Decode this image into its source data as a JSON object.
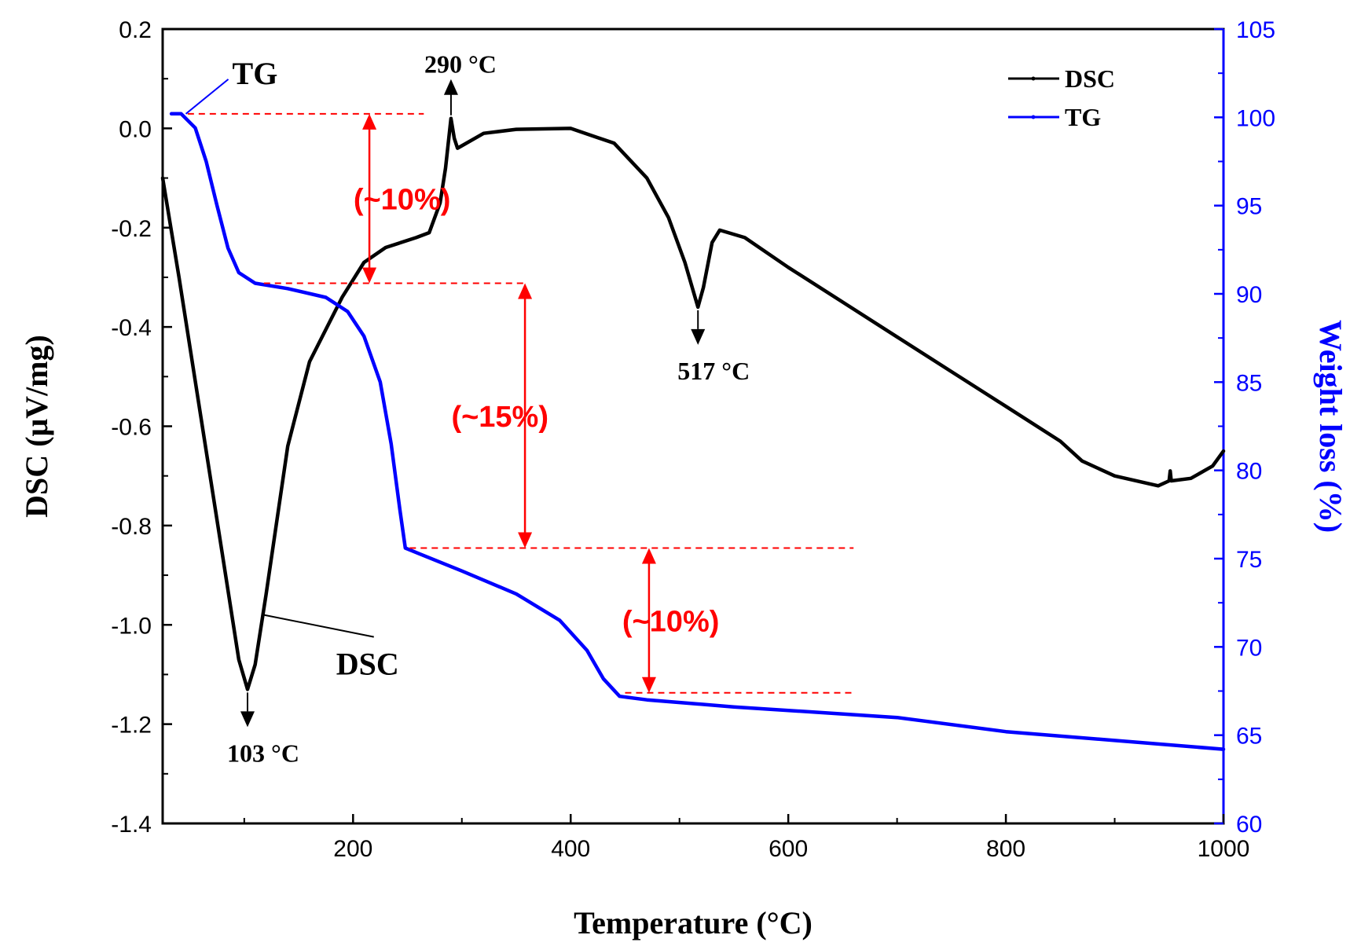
{
  "chart_data": {
    "type": "line",
    "x": {
      "label": "Temperature (°C)",
      "range": [
        25,
        1000
      ],
      "ticks": [
        200,
        400,
        600,
        800,
        1000
      ]
    },
    "y_left": {
      "label": "DSC (μV/mg)",
      "range": [
        -1.4,
        0.2
      ],
      "ticks": [
        0.2,
        0.0,
        -0.2,
        -0.4,
        -0.6,
        -0.8,
        -1.0,
        -1.2,
        -1.4
      ],
      "tick_labels": [
        "0.2",
        "0.0",
        "-0.2",
        "-0.4",
        "-0.6",
        "-0.8",
        "-1.0",
        "-1.2",
        "-1.4"
      ]
    },
    "y_right": {
      "label": "Weight loss (%)",
      "range": [
        60,
        105
      ],
      "ticks": [
        105,
        100,
        95,
        90,
        85,
        80,
        75,
        70,
        65,
        60
      ],
      "color": "#0000ff"
    },
    "series": [
      {
        "name": "DSC",
        "axis": "left",
        "color": "#000000",
        "points": [
          [
            25,
            -0.1
          ],
          [
            40,
            -0.3
          ],
          [
            60,
            -0.58
          ],
          [
            80,
            -0.86
          ],
          [
            95,
            -1.07
          ],
          [
            103,
            -1.13
          ],
          [
            110,
            -1.08
          ],
          [
            120,
            -0.94
          ],
          [
            140,
            -0.64
          ],
          [
            160,
            -0.47
          ],
          [
            190,
            -0.34
          ],
          [
            210,
            -0.27
          ],
          [
            230,
            -0.24
          ],
          [
            258,
            -0.22
          ],
          [
            270,
            -0.21
          ],
          [
            280,
            -0.15
          ],
          [
            285,
            -0.08
          ],
          [
            290,
            0.02
          ],
          [
            293,
            -0.02
          ],
          [
            296,
            -0.04
          ],
          [
            300,
            -0.035
          ],
          [
            320,
            -0.01
          ],
          [
            350,
            -0.002
          ],
          [
            400,
            0.0
          ],
          [
            440,
            -0.03
          ],
          [
            470,
            -0.1
          ],
          [
            490,
            -0.18
          ],
          [
            505,
            -0.27
          ],
          [
            517,
            -0.36
          ],
          [
            522,
            -0.32
          ],
          [
            530,
            -0.23
          ],
          [
            537,
            -0.205
          ],
          [
            560,
            -0.22
          ],
          [
            600,
            -0.28
          ],
          [
            650,
            -0.35
          ],
          [
            700,
            -0.42
          ],
          [
            750,
            -0.49
          ],
          [
            800,
            -0.56
          ],
          [
            850,
            -0.63
          ],
          [
            870,
            -0.67
          ],
          [
            900,
            -0.7
          ],
          [
            940,
            -0.72
          ],
          [
            950,
            -0.71
          ],
          [
            951,
            -0.69
          ],
          [
            952,
            -0.71
          ],
          [
            970,
            -0.705
          ],
          [
            990,
            -0.68
          ],
          [
            1000,
            -0.65
          ]
        ]
      },
      {
        "name": "TG",
        "axis": "right",
        "color": "#0000ff",
        "points": [
          [
            33,
            100.2
          ],
          [
            42,
            100.2
          ],
          [
            55,
            99.4
          ],
          [
            65,
            97.5
          ],
          [
            75,
            95.0
          ],
          [
            85,
            92.6
          ],
          [
            95,
            91.2
          ],
          [
            110,
            90.6
          ],
          [
            140,
            90.3
          ],
          [
            175,
            89.8
          ],
          [
            195,
            89.0
          ],
          [
            210,
            87.6
          ],
          [
            225,
            85.0
          ],
          [
            235,
            81.5
          ],
          [
            243,
            77.8
          ],
          [
            248,
            75.6
          ],
          [
            260,
            75.3
          ],
          [
            300,
            74.3
          ],
          [
            350,
            73.0
          ],
          [
            390,
            71.5
          ],
          [
            415,
            69.8
          ],
          [
            430,
            68.2
          ],
          [
            445,
            67.2
          ],
          [
            470,
            67.0
          ],
          [
            550,
            66.6
          ],
          [
            700,
            66.0
          ],
          [
            800,
            65.2
          ],
          [
            900,
            64.7
          ],
          [
            1000,
            64.2
          ]
        ]
      }
    ],
    "legend": {
      "position": "top-right",
      "entries": [
        {
          "label": "DSC",
          "color": "#000000"
        },
        {
          "label": "TG",
          "color": "#0000ff"
        }
      ]
    },
    "annotations": {
      "peak_labels": [
        {
          "text": "290 °C",
          "x": 290,
          "y": 0.02,
          "direction": "up"
        },
        {
          "text": "517 °C",
          "x": 517,
          "y": -0.36,
          "direction": "down"
        },
        {
          "text": "103 °C",
          "x": 103,
          "y": -1.13,
          "direction": "down"
        }
      ],
      "curve_labels": [
        {
          "text": "TG",
          "target_x": 42,
          "target_weight": 100.2
        },
        {
          "text": "DSC",
          "target_x": 118,
          "target_dsc": -0.98
        }
      ],
      "weight_loss_steps": [
        {
          "text": "(~10%)",
          "from_weight": 100.2,
          "to_weight": 90.6,
          "arrow_x": 215,
          "line_start_x": 48,
          "line_end_x": 265,
          "label_x": 245
        },
        {
          "text": "(~15%)",
          "from_weight": 90.6,
          "to_weight": 75.6,
          "arrow_x": 358,
          "line_start_x": 118,
          "line_end_x": 358,
          "label_x": 335
        },
        {
          "text": "(~10%)",
          "from_weight": 75.6,
          "to_weight": 67.4,
          "arrow_x": 472,
          "line_start_x": 252,
          "line_end_x": 660,
          "label_x": 492
        }
      ]
    }
  }
}
